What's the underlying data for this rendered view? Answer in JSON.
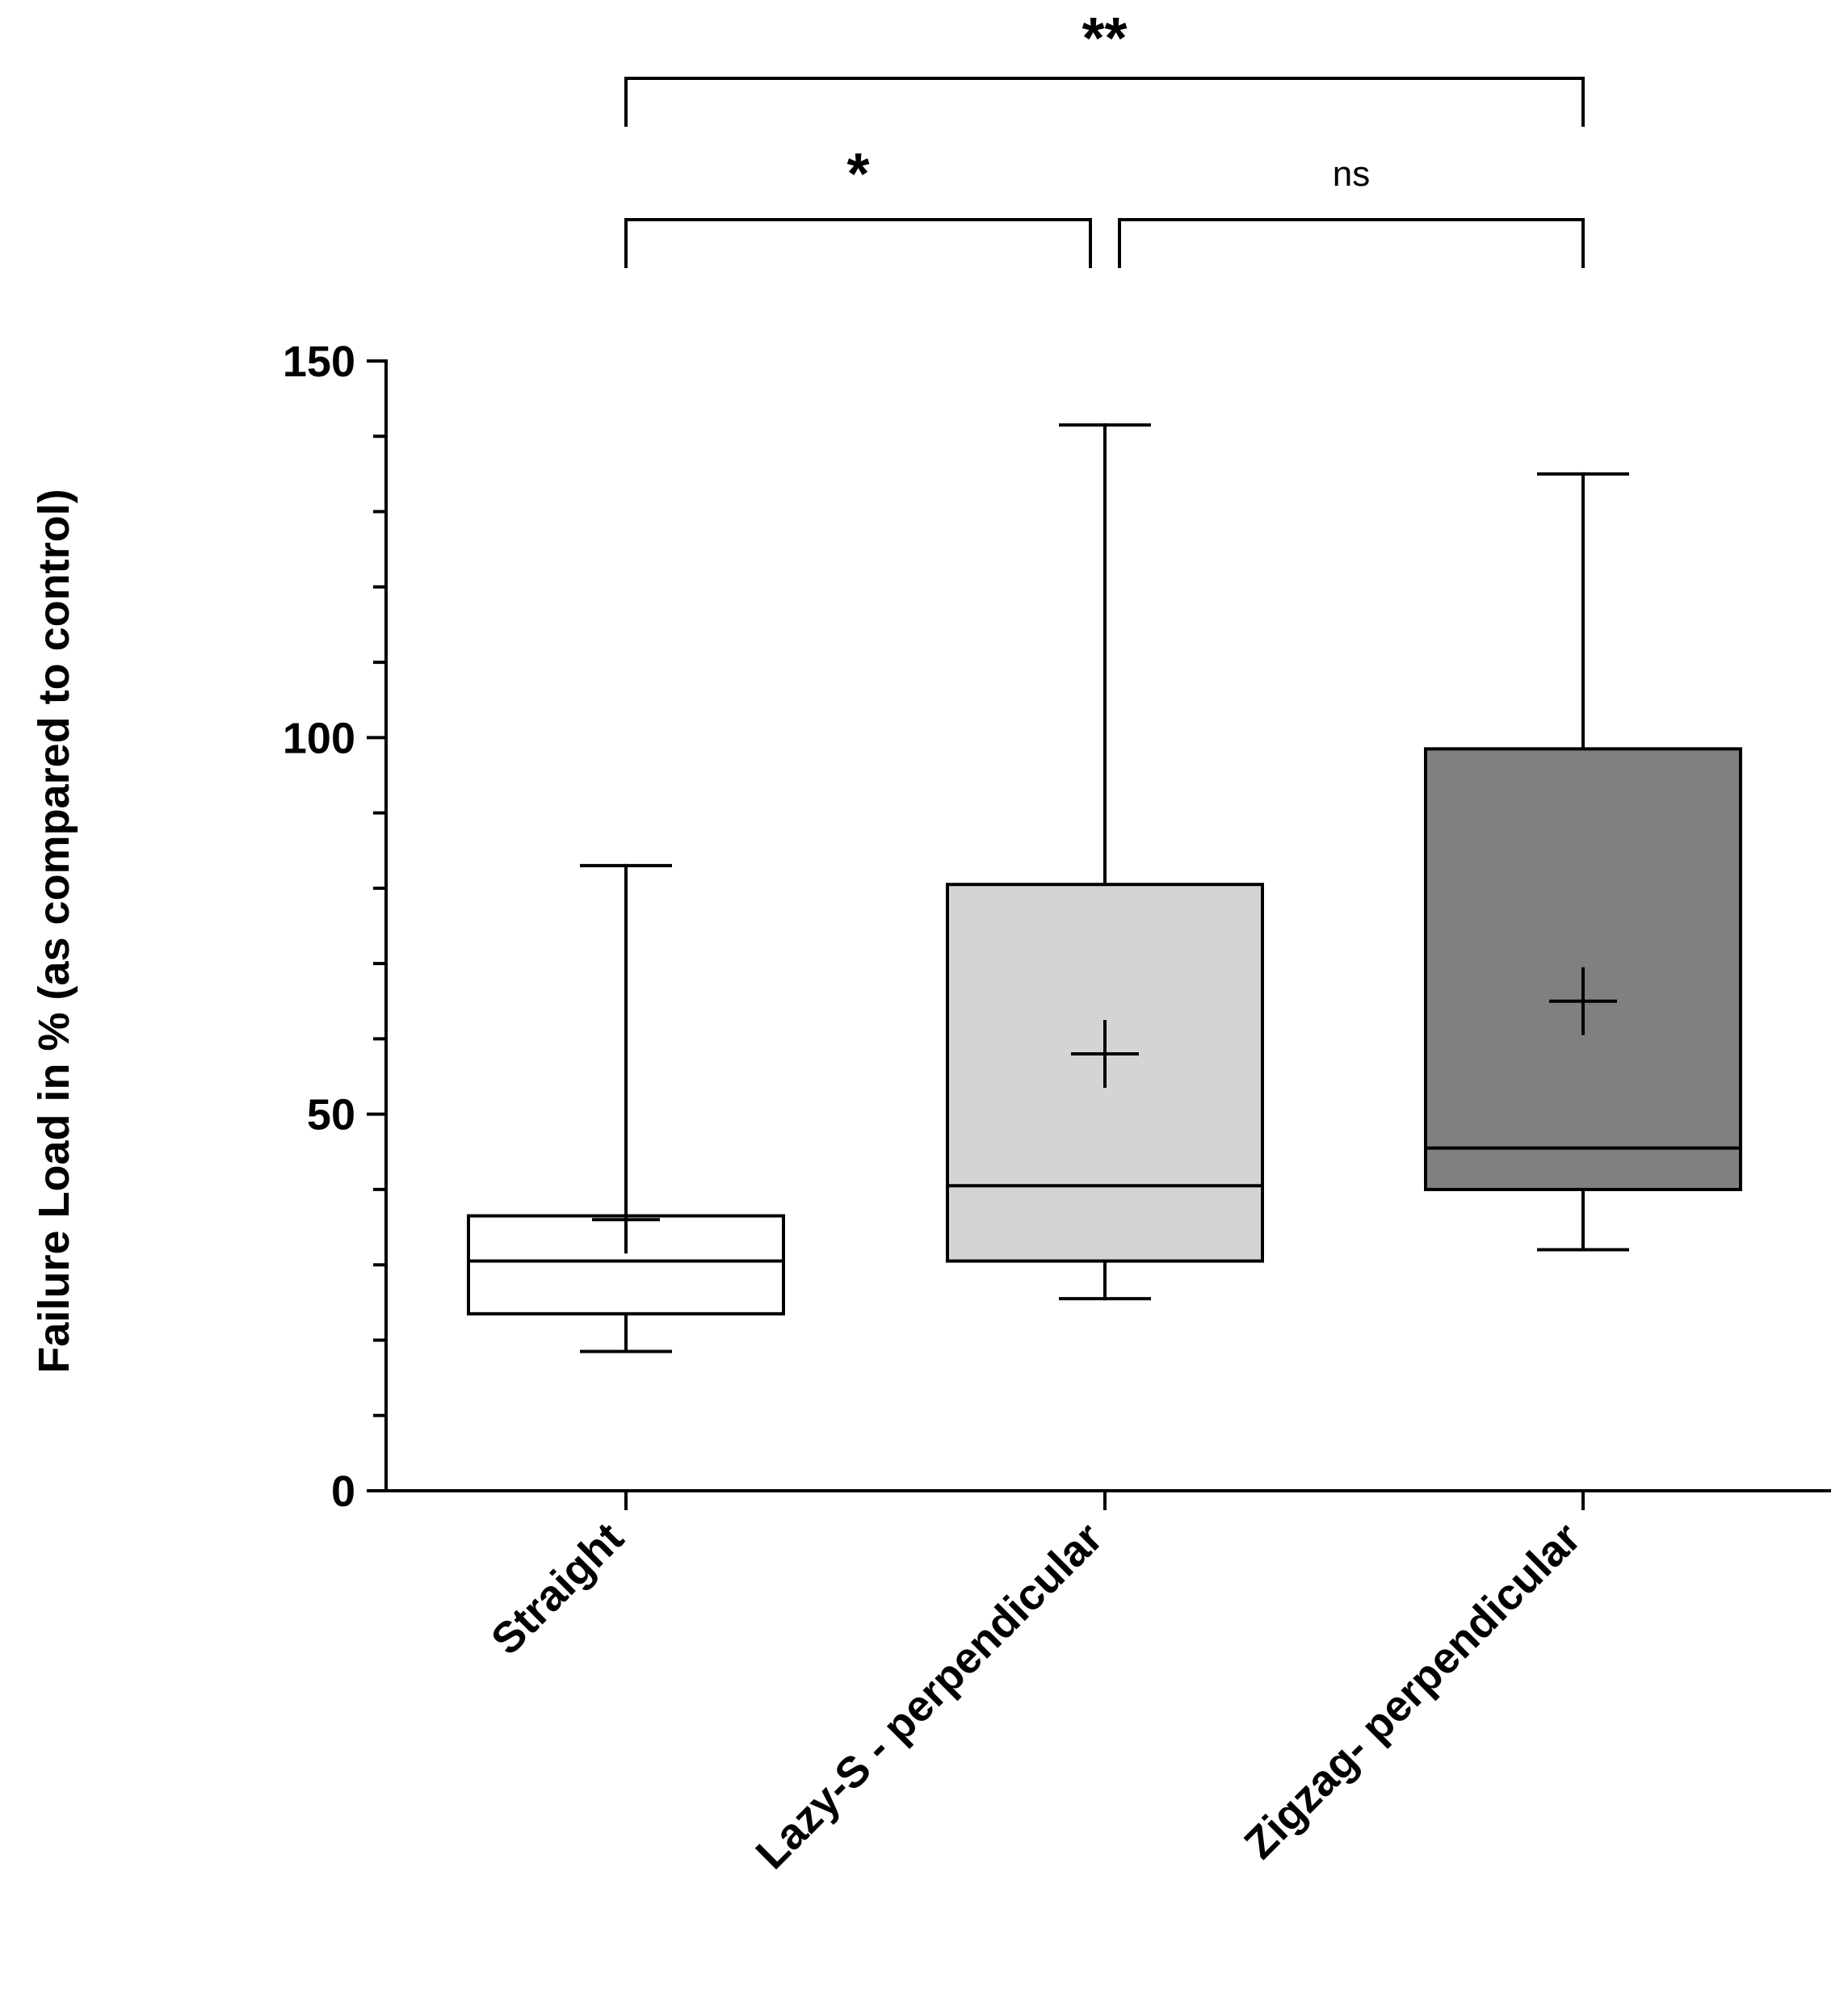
{
  "chart_data": {
    "type": "box",
    "title": "",
    "xlabel": "",
    "ylabel": "Failure Load in % (as compared to control)",
    "ylim": [
      0,
      150
    ],
    "yticks": [
      "0",
      "50",
      "100",
      "150"
    ],
    "minor_tick_step": 10,
    "categories": [
      "Straight",
      "Lazy-S - perpendicular",
      "Zigzag- perpendicular"
    ],
    "boxes": [
      {
        "name": "Straight",
        "min": 18.5,
        "q1": 23.5,
        "median": 30.5,
        "q3": 36.5,
        "max": 83,
        "mean": 36,
        "fill": "#ffffff"
      },
      {
        "name": "Lazy-S - perpendicular",
        "min": 25.5,
        "q1": 30.5,
        "median": 40.5,
        "q3": 80.5,
        "max": 141.5,
        "mean": 58,
        "fill": "#d4d4d4"
      },
      {
        "name": "Zigzag- perpendicular",
        "min": 32,
        "q1": 40,
        "median": 45.5,
        "q3": 98.5,
        "max": 135,
        "mean": 65,
        "fill": "#808080"
      }
    ],
    "significance": [
      {
        "from": 0,
        "to": 2,
        "label": "**",
        "level": "top"
      },
      {
        "from": 0,
        "to": 1,
        "label": "*",
        "level": "lower"
      },
      {
        "from": 1,
        "to": 2,
        "label": "ns",
        "level": "lower"
      }
    ]
  }
}
